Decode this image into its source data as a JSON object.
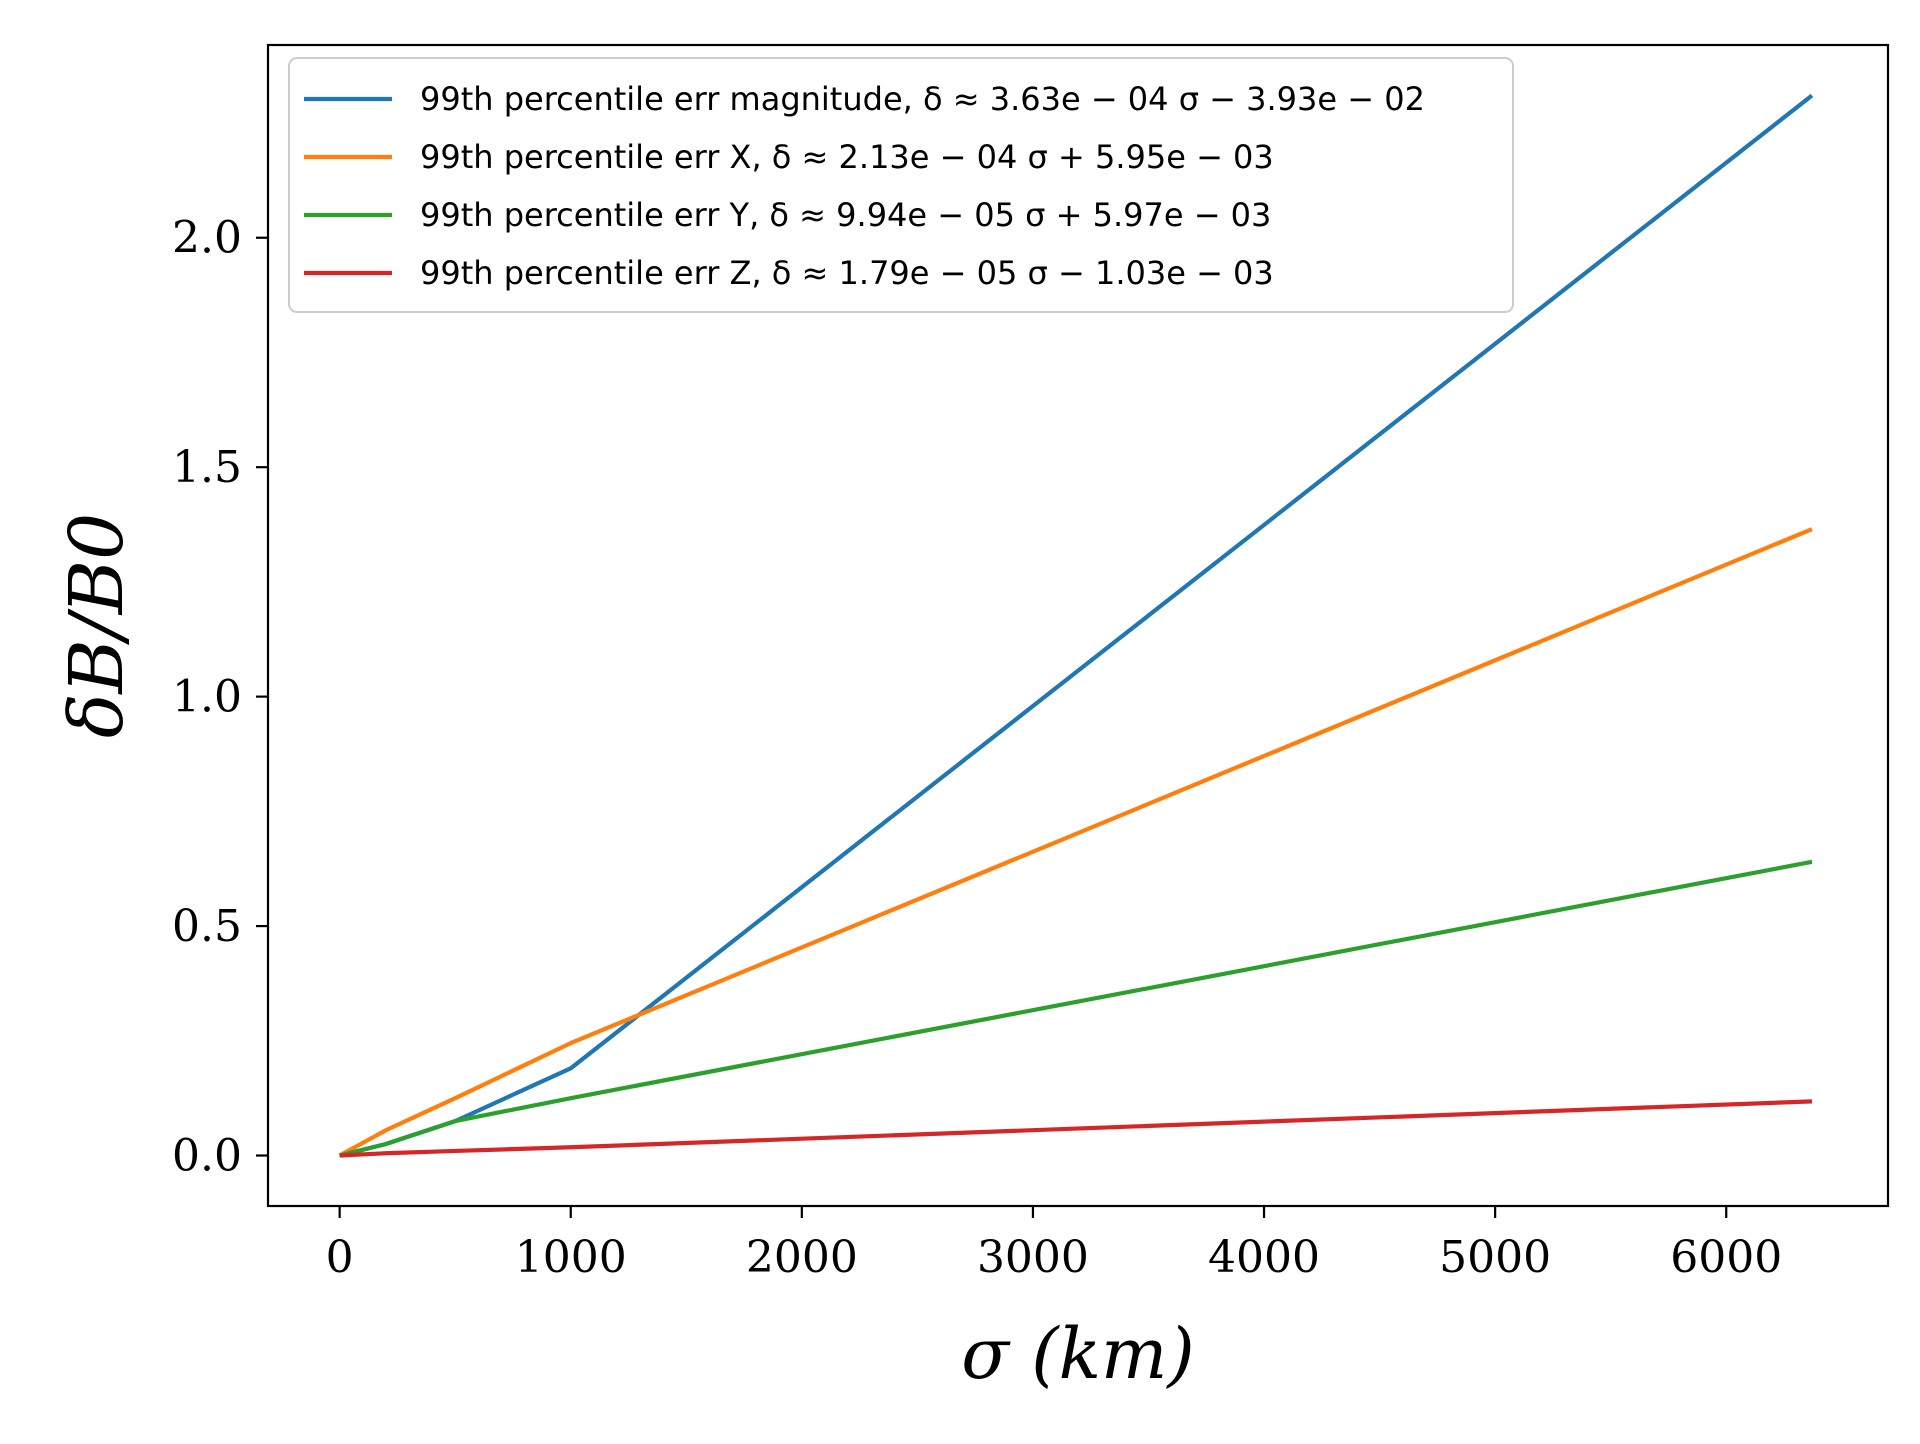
{
  "chart_data": {
    "type": "line",
    "xlabel": "σ (km)",
    "ylabel": "δB/B0",
    "xlim": [
      -310,
      6700
    ],
    "ylim": [
      -0.11,
      2.42
    ],
    "xticks": [
      0,
      1000,
      2000,
      3000,
      4000,
      5000,
      6000
    ],
    "yticks": [
      0.0,
      0.5,
      1.0,
      1.5,
      2.0
    ],
    "xtick_labels": [
      "0",
      "1000",
      "2000",
      "3000",
      "4000",
      "5000",
      "6000"
    ],
    "ytick_labels": [
      "0.0",
      "0.5",
      "1.0",
      "1.5",
      "2.0"
    ],
    "grid": false,
    "legend_position": "top-left",
    "series": [
      {
        "name": "99th percentile err magnitude, δ ≈ 3.63e − 04 σ − 3.93e − 02",
        "color": "#1f77b4",
        "x": [
          0,
          200,
          500,
          1000,
          6371
        ],
        "y": [
          0.0,
          0.025,
          0.075,
          0.19,
          2.31
        ]
      },
      {
        "name": "99th percentile err X, δ ≈ 2.13e − 04 σ + 5.95e − 03",
        "color": "#ff7f0e",
        "x": [
          0,
          200,
          500,
          1000,
          6371
        ],
        "y": [
          0.0,
          0.055,
          0.125,
          0.245,
          1.365
        ]
      },
      {
        "name": "99th percentile err Y, δ ≈ 9.94e − 05 σ + 5.97e − 03",
        "color": "#2ca02c",
        "x": [
          0,
          200,
          500,
          1000,
          6371
        ],
        "y": [
          0.0,
          0.025,
          0.075,
          0.125,
          0.64
        ]
      },
      {
        "name": "99th percentile err Z, δ ≈ 1.79e − 05 σ − 1.03e − 03",
        "color": "#d62728",
        "x": [
          0,
          200,
          500,
          1000,
          6371
        ],
        "y": [
          0.0,
          0.005,
          0.01,
          0.018,
          0.118
        ]
      }
    ]
  }
}
